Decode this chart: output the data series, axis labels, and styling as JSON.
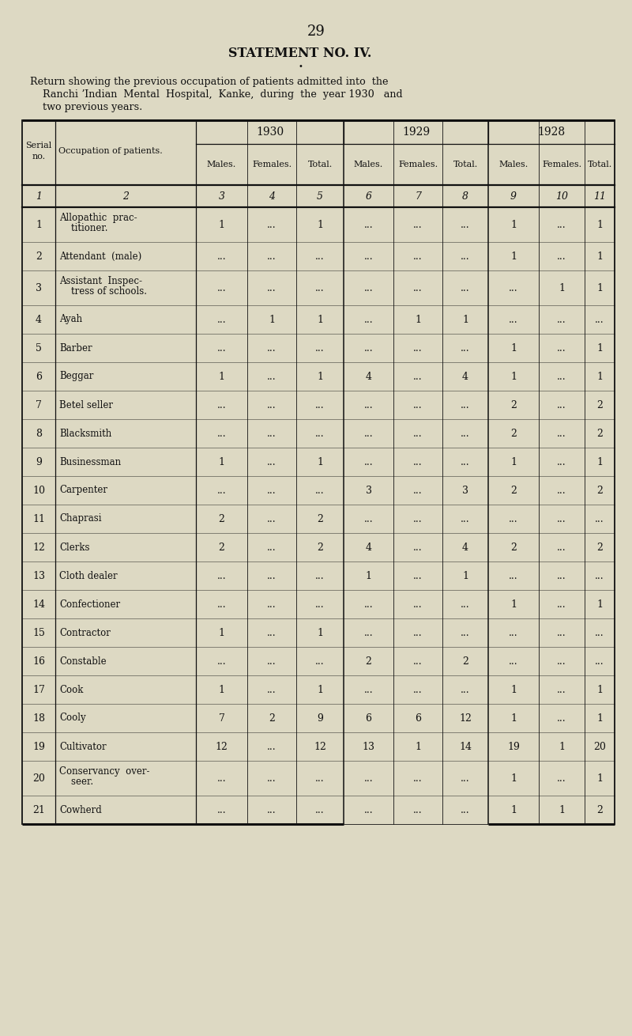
{
  "page_number": "29",
  "statement_title": "STATEMENT NO. IV.",
  "bullet": "•",
  "description_lines": [
    "Return showing the previous occupation of patients admitted into  the",
    "    Ranchi ʼIndian  Mental  Hospital,  Kanke,  during  the  year 1930   and",
    "    two previous years."
  ],
  "year_labels": [
    "1930",
    "1929",
    "1928"
  ],
  "sub_col_labels": [
    "Males.",
    "Females.",
    "Total.",
    "Males.",
    "Females.",
    "Total.",
    "Males.",
    "Females.",
    "Total."
  ],
  "col_numbers": [
    "1",
    "2",
    "3",
    "4",
    "5",
    "6",
    "7",
    "8",
    "9",
    "10",
    "11"
  ],
  "rows": [
    [
      1,
      "Allopathic  prac-\n    titioner.",
      "1",
      "...",
      "1",
      "...",
      "...",
      "...",
      "1",
      "...",
      "1"
    ],
    [
      2,
      "Attendant  (male)",
      "...",
      "...",
      "...",
      "...",
      "...",
      "...",
      "1",
      "...",
      "1"
    ],
    [
      3,
      "Assistant  Inspec-\n    tress of schools.",
      "...",
      "...",
      "...",
      "...",
      "...",
      "...",
      "...",
      "1",
      "1"
    ],
    [
      4,
      "Ayah",
      "...",
      "1",
      "1",
      "...",
      "1",
      "1",
      "...",
      "...",
      "..."
    ],
    [
      5,
      "Barber",
      "...",
      "...",
      "...",
      "...",
      "...",
      "...",
      "1",
      "...",
      "1"
    ],
    [
      6,
      "Beggar",
      "1",
      "...",
      "1",
      "4",
      "...",
      "4",
      "1",
      "...",
      "1"
    ],
    [
      7,
      "Betel seller",
      "...",
      "...",
      "...",
      "...",
      "...",
      "...",
      "2",
      "...",
      "2"
    ],
    [
      8,
      "Blacksmith",
      "...",
      "...",
      "...",
      "...",
      "...",
      "...",
      "2",
      "...",
      "2"
    ],
    [
      9,
      "Businessman",
      "1",
      "...",
      "1",
      "...",
      "...",
      "...",
      "1",
      "...",
      "1"
    ],
    [
      10,
      "Carpenter",
      "...",
      "...",
      "...",
      "3",
      "...",
      "3",
      "2",
      "...",
      "2"
    ],
    [
      11,
      "Chaprasi",
      "2",
      "...",
      "2",
      "...",
      "...",
      "...",
      "...",
      "...",
      "..."
    ],
    [
      12,
      "Clerks",
      "2",
      "...",
      "2",
      "4",
      "...",
      "4",
      "2",
      "...",
      "2"
    ],
    [
      13,
      "Cloth dealer",
      "...",
      "...",
      "...",
      "1",
      "...",
      "1",
      "...",
      "...",
      "..."
    ],
    [
      14,
      "Confectioner",
      "...",
      "...",
      "...",
      "...",
      "...",
      "...",
      "1",
      "...",
      "1"
    ],
    [
      15,
      "Contractor",
      "1",
      "...",
      "1",
      "...",
      "...",
      "...",
      "...",
      "...",
      "..."
    ],
    [
      16,
      "Constable",
      "...",
      "...",
      "...",
      "2",
      "...",
      "2",
      "...",
      "...",
      "..."
    ],
    [
      17,
      "Cook",
      "1",
      "...",
      "1",
      "...",
      "...",
      "...",
      "1",
      "...",
      "1"
    ],
    [
      18,
      "Cooly",
      "7",
      "2",
      "9",
      "6",
      "6",
      "12",
      "1",
      "...",
      "1"
    ],
    [
      19,
      "Cultivator",
      "12",
      "...",
      "12",
      "13",
      "1",
      "14",
      "19",
      "1",
      "20"
    ],
    [
      20,
      "Conservancy  over-\n    seer.",
      "...",
      "...",
      "...",
      "...",
      "...",
      "...",
      "1",
      "...",
      "1"
    ],
    [
      21,
      "Cowherd",
      "...",
      "...",
      "...",
      "...",
      "...",
      "...",
      "1",
      "1",
      "2"
    ]
  ],
  "bg_color": "#ddd9c3",
  "text_color": "#111111",
  "line_color": "#111111"
}
